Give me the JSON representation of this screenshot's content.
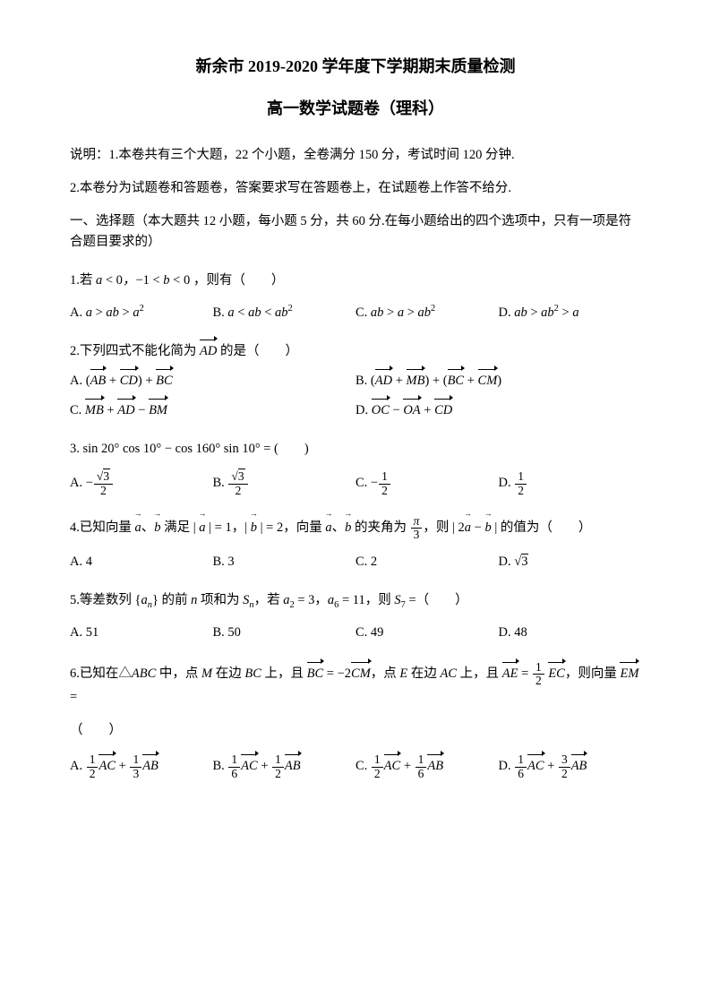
{
  "title": "新余市 2019-2020 学年度下学期期末质量检测",
  "subtitle": "高一数学试题卷（理科）",
  "note1": "说明：1.本卷共有三个大题，22 个小题，全卷满分 150 分，考试时间 120 分钟.",
  "note2": "2.本卷分为试题卷和答题卷，答案要求写在答题卷上，在试题卷上作答不给分.",
  "section1": "一、选择题（本大题共 12 小题，每小题 5 分，共 60 分.在每小题给出的四个选项中，只有一项是符合题目要求的）",
  "q1": {
    "stem_pre": "1.若 ",
    "stem_post": "，则有（　　）",
    "A": "A.",
    "B": "B.",
    "C": "C.",
    "D": "D."
  },
  "q2": {
    "stem_pre": "2.下列四式不能化简为 ",
    "stem_post": " 的是（　　）",
    "A": "A.",
    "B": "B.",
    "C": "C.",
    "D": "D."
  },
  "q3": {
    "stem": "3. sin 20° cos 10° − cos 160° sin 10° = (　　)",
    "A": "A.",
    "B": "B.",
    "C": "C.",
    "D": "D."
  },
  "q4": {
    "pre": "4.已知向量 ",
    "mid1": "、",
    "mid2": " 满足 | ",
    "mid3": " | = 1，| ",
    "mid4": " | = 2，向量 ",
    "mid5": "、",
    "mid6": " 的夹角为 ",
    "mid7": "，则 | 2",
    "mid8": " − ",
    "post": " | 的值为（　　）",
    "A": "A. 4",
    "B": "B. 3",
    "C": "C. 2",
    "D": "D."
  },
  "q5": {
    "pre": "5.等差数列 {",
    "mid1": "} 的前 ",
    "mid2": " 项和为 ",
    "mid3": "，若 ",
    "mid4": " = 3，",
    "mid5": " = 11，则 ",
    "post": " =（　　）",
    "A": "A. 51",
    "B": "B. 50",
    "C": "C. 49",
    "D": "D. 48"
  },
  "q6": {
    "pre": "6.已知在△",
    "mid1": " 中，点 ",
    "mid2": " 在边 ",
    "mid3": " 上，且 ",
    "mid4": " = −2",
    "mid5": "，点 ",
    "mid6": " 在边 ",
    "mid7": " 上，且 ",
    "mid8": " = ",
    "mid9": " ",
    "post": "，则向量 ",
    "end": " =",
    "paren": "（　　）",
    "A": "A.",
    "B": "B.",
    "C": "C.",
    "D": "D."
  }
}
